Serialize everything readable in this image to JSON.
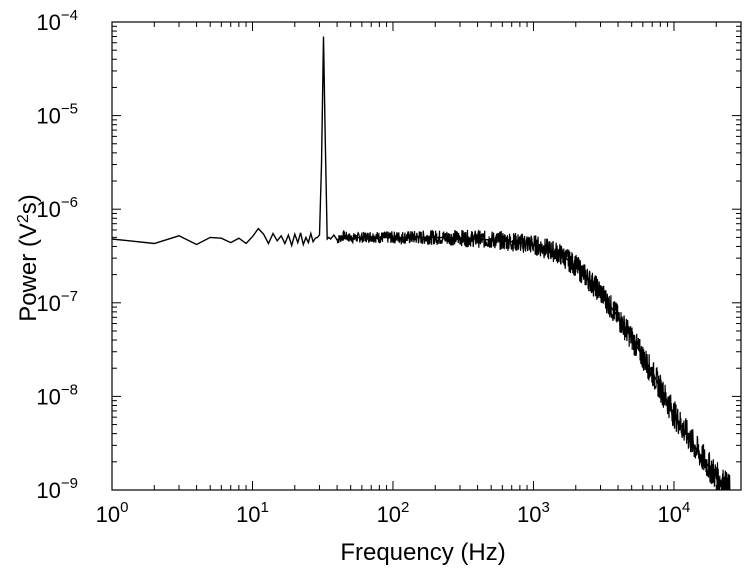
{
  "chart_data": {
    "type": "line",
    "xlabel": "Frequency (Hz)",
    "ylabel": {
      "base": "Power (V",
      "sup": "2",
      "tail": "s)"
    },
    "x_scale": "log",
    "y_scale": "log",
    "xlim": [
      1,
      30000
    ],
    "ylim": [
      1e-09,
      0.0001
    ],
    "grid": false,
    "x_ticks": [
      {
        "value": 1,
        "base": "10",
        "exp": "0"
      },
      {
        "value": 10,
        "base": "10",
        "exp": "1"
      },
      {
        "value": 100,
        "base": "10",
        "exp": "2"
      },
      {
        "value": 1000,
        "base": "10",
        "exp": "3"
      },
      {
        "value": 10000,
        "base": "10",
        "exp": "4"
      }
    ],
    "y_ticks": [
      {
        "value": 1e-09,
        "base": "10",
        "exp": "−9"
      },
      {
        "value": 1e-08,
        "base": "10",
        "exp": "−8"
      },
      {
        "value": 1e-07,
        "base": "10",
        "exp": "−7"
      },
      {
        "value": 1e-06,
        "base": "10",
        "exp": "−6"
      },
      {
        "value": 1e-05,
        "base": "10",
        "exp": "−5"
      },
      {
        "value": 0.0001,
        "base": "10",
        "exp": "−4"
      }
    ],
    "series": [
      {
        "color": "#000000",
        "x": [
          1,
          2,
          3,
          4,
          5,
          6,
          7,
          8,
          9,
          10,
          11,
          12,
          13,
          14,
          15,
          16,
          17,
          18,
          19,
          20,
          21,
          22,
          23,
          24,
          25,
          26,
          27,
          28,
          29,
          30,
          31,
          32,
          33,
          34,
          35,
          36,
          38,
          40,
          45,
          50,
          60,
          70,
          80,
          100,
          150,
          200,
          300,
          400,
          500,
          700,
          1000,
          1500,
          2000,
          3000,
          4000,
          5000,
          7000,
          10000,
          15000,
          20000,
          25000
        ],
        "y": [
          4.8e-07,
          4.3e-07,
          5.2e-07,
          4.2e-07,
          5e-07,
          4.9e-07,
          4.4e-07,
          4.9e-07,
          4.3e-07,
          5.1e-07,
          6.2e-07,
          5.4e-07,
          4.3e-07,
          5.5e-07,
          4.6e-07,
          5.2e-07,
          4.3e-07,
          5.3e-07,
          4.1e-07,
          5.4e-07,
          4.4e-07,
          5.6e-07,
          4.2e-07,
          5e-07,
          4.4e-07,
          5.5e-07,
          4.5e-07,
          4.9e-07,
          5e-07,
          5.3e-07,
          3e-06,
          7e-05,
          5.2e-06,
          4.8e-07,
          5e-07,
          4.8e-07,
          5.3e-07,
          4.7e-07,
          5.2e-07,
          4.9e-07,
          5e-07,
          5.1e-07,
          5e-07,
          5e-07,
          5e-07,
          5e-07,
          4.95e-07,
          4.8e-07,
          4.7e-07,
          4.5e-07,
          4.2e-07,
          3.4e-07,
          2.5e-07,
          1.3e-07,
          7e-08,
          4.2e-08,
          1.8e-08,
          6.5e-09,
          2.5e-09,
          1.4e-09,
          1e-09
        ]
      }
    ]
  }
}
